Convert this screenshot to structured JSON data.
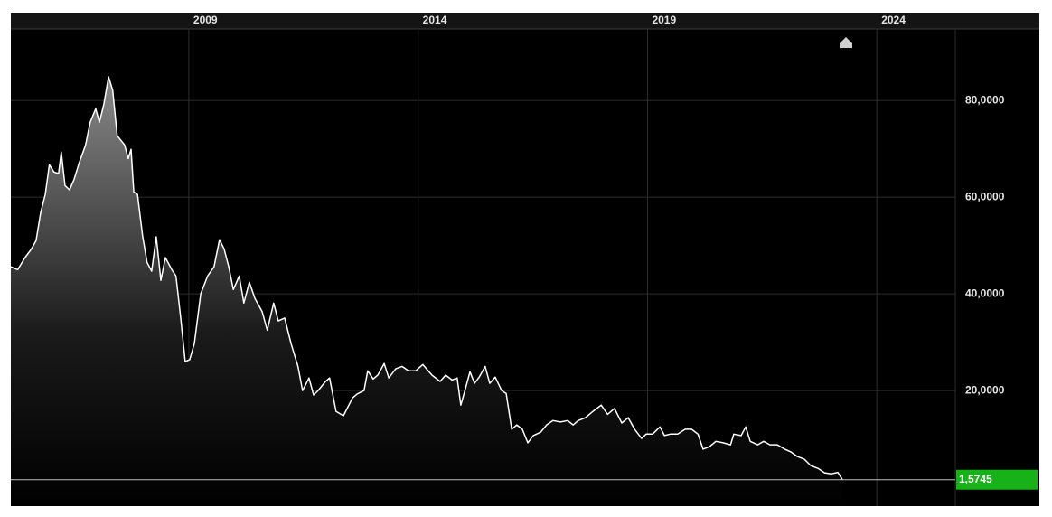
{
  "chart_data": {
    "type": "area",
    "color": "#ffffff",
    "grid": true,
    "x": [
      2005.12,
      2005.27,
      2005.43,
      2005.57,
      2005.67,
      2005.77,
      2005.87,
      2005.96,
      2006.06,
      2006.16,
      2006.22,
      2006.3,
      2006.4,
      2006.5,
      2006.61,
      2006.75,
      2006.85,
      2006.97,
      2007.05,
      2007.15,
      2007.25,
      2007.34,
      2007.44,
      2007.6,
      2007.68,
      2007.74,
      2007.8,
      2007.88,
      2007.99,
      2008.09,
      2008.19,
      2008.29,
      2008.39,
      2008.49,
      2008.63,
      2008.72,
      2008.82,
      2008.92,
      2009.02,
      2009.12,
      2009.26,
      2009.41,
      2009.55,
      2009.67,
      2009.77,
      2009.87,
      2009.97,
      2010.1,
      2010.2,
      2010.32,
      2010.44,
      2010.6,
      2010.71,
      2010.85,
      2010.95,
      2011.09,
      2011.23,
      2011.38,
      2011.48,
      2011.62,
      2011.72,
      2011.82,
      2011.98,
      2012.07,
      2012.21,
      2012.37,
      2012.57,
      2012.67,
      2012.82,
      2012.9,
      2013.02,
      2013.12,
      2013.26,
      2013.36,
      2013.51,
      2013.65,
      2013.79,
      2013.95,
      2014.1,
      2014.3,
      2014.48,
      2014.6,
      2014.74,
      2014.85,
      2014.93,
      2015.03,
      2015.13,
      2015.23,
      2015.33,
      2015.46,
      2015.56,
      2015.68,
      2015.82,
      2015.92,
      2016.04,
      2016.15,
      2016.27,
      2016.39,
      2016.51,
      2016.67,
      2016.8,
      2016.94,
      2017.1,
      2017.26,
      2017.38,
      2017.49,
      2017.65,
      2017.81,
      2017.99,
      2018.13,
      2018.28,
      2018.44,
      2018.58,
      2018.72,
      2018.87,
      2018.97,
      2019.11,
      2019.27,
      2019.37,
      2019.5,
      2019.66,
      2019.82,
      2019.96,
      2020.1,
      2020.21,
      2020.35,
      2020.49,
      2020.65,
      2020.81,
      2020.88,
      2021.04,
      2021.14,
      2021.24,
      2021.4,
      2021.53,
      2021.67,
      2021.83,
      2021.99,
      2022.13,
      2022.26,
      2022.42,
      2022.56,
      2022.72,
      2022.86,
      2023.01,
      2023.15,
      2023.25
    ],
    "values": [
      45.6,
      45,
      47.5,
      49.3,
      51,
      56.8,
      60.6,
      66.7,
      65.2,
      64.9,
      69.3,
      62.4,
      61.5,
      63.7,
      67.1,
      70.8,
      75.5,
      78.3,
      75.5,
      79.3,
      84.9,
      82.1,
      72.7,
      70.8,
      68,
      69.9,
      61.1,
      60.6,
      52.1,
      46.5,
      44.7,
      51.8,
      42.8,
      47.5,
      45,
      43.7,
      35.3,
      26,
      26.4,
      29.7,
      40,
      43.7,
      45.6,
      51.2,
      49.3,
      45.6,
      40.9,
      43.7,
      38.1,
      42.4,
      39.1,
      36.3,
      32.5,
      38.1,
      34.4,
      35,
      29.7,
      25,
      20,
      22.6,
      19.1,
      20,
      21.9,
      22.6,
      15.7,
      14.8,
      18.5,
      19.3,
      20,
      24.1,
      22.4,
      23.2,
      25.6,
      22.6,
      24.5,
      25,
      24.1,
      24.1,
      25.4,
      23.2,
      21.9,
      23.2,
      22.2,
      22.6,
      17,
      20.4,
      23.9,
      21.5,
      22.8,
      25,
      21.5,
      22.8,
      20,
      19.4,
      12,
      12.9,
      12,
      9.2,
      10.7,
      11.4,
      12.9,
      13.8,
      13.5,
      13.8,
      12.9,
      13.8,
      14.4,
      15.7,
      17,
      15.1,
      16.3,
      13.3,
      14.4,
      12,
      10.1,
      11,
      11,
      12.5,
      10.7,
      11,
      11,
      12,
      12,
      11,
      7.9,
      8.4,
      9.5,
      9.2,
      8.8,
      11,
      10.7,
      12.5,
      9.5,
      8.8,
      9.5,
      8.8,
      8.8,
      7.9,
      7.3,
      6.4,
      5.8,
      4.5,
      3.9,
      3,
      2.8,
      3.1,
      1.5745
    ],
    "current_value": {
      "value": 1.5745,
      "label": "1,5745"
    },
    "current_color": "#17b217",
    "xlim": [
      2005.12,
      2025.71
    ],
    "xticks": [
      2009,
      2014,
      2019,
      2024
    ],
    "ylim": [
      -3.9,
      94.8
    ],
    "yticks": [
      {
        "value": 20,
        "label": "20,0000"
      },
      {
        "value": 40,
        "label": "40,0000"
      },
      {
        "value": 60,
        "label": "60,0000"
      },
      {
        "value": 80,
        "label": "80,0000"
      }
    ]
  }
}
